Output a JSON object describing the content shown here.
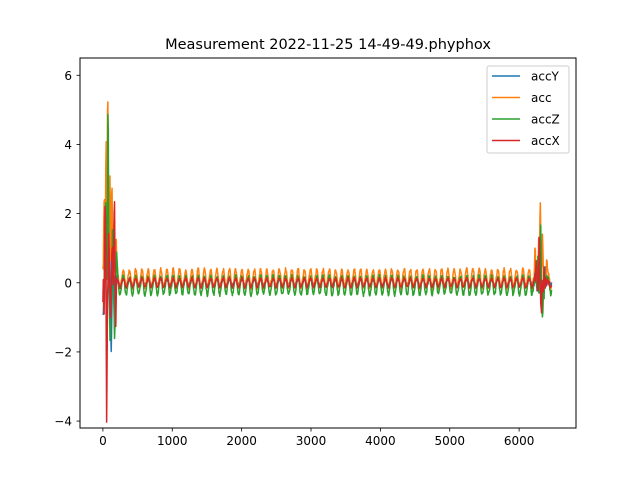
{
  "chart_data": {
    "type": "line",
    "title": "Measurement 2022-11-25 14-49-49.phyphox",
    "xlabel": "",
    "ylabel": "",
    "xlim": [
      -330,
      6820
    ],
    "ylim": [
      -4.2,
      6.5
    ],
    "x_ticks": [
      0,
      1000,
      2000,
      3000,
      4000,
      5000,
      6000
    ],
    "y_ticks": [
      -4,
      -2,
      0,
      2,
      4,
      6
    ],
    "grid": false,
    "legend_position": "upper-right",
    "series": [
      {
        "name": "accY",
        "color": "#1f77b4",
        "base": 0.02,
        "osc_amp": 0.08,
        "osc_period": 90,
        "noise": 0.03,
        "x_range": [
          0,
          6470
        ],
        "spikes": [
          [
            5,
            -0.8
          ],
          [
            30,
            0.9
          ],
          [
            60,
            -1.5
          ],
          [
            95,
            1.0
          ],
          [
            120,
            -2.3
          ],
          [
            145,
            0.6
          ],
          [
            170,
            -1.2
          ],
          [
            6260,
            -0.5
          ],
          [
            6300,
            1.0
          ],
          [
            6330,
            -0.9
          ],
          [
            6380,
            0.3
          ]
        ]
      },
      {
        "name": "acc",
        "color": "#ff7f0e",
        "base": 0.12,
        "osc_amp": 0.3,
        "osc_period": 90,
        "noise": 0.05,
        "x_range": [
          0,
          6470
        ],
        "spikes": [
          [
            20,
            2.4
          ],
          [
            45,
            4.1
          ],
          [
            70,
            6.0
          ],
          [
            100,
            2.7
          ],
          [
            130,
            2.9
          ],
          [
            160,
            1.9
          ],
          [
            190,
            1.0
          ],
          [
            6230,
            0.6
          ],
          [
            6280,
            1.3
          ],
          [
            6305,
            2.07
          ],
          [
            6340,
            1.1
          ],
          [
            6400,
            0.4
          ]
        ]
      },
      {
        "name": "accZ",
        "color": "#2ca02c",
        "base": -0.08,
        "osc_amp": 0.3,
        "osc_period": 90,
        "noise": 0.05,
        "x_range": [
          0,
          6470
        ],
        "spikes": [
          [
            10,
            -0.6
          ],
          [
            40,
            2.5
          ],
          [
            75,
            5.65
          ],
          [
            105,
            -1.9
          ],
          [
            140,
            1.6
          ],
          [
            170,
            -1.3
          ],
          [
            200,
            0.6
          ],
          [
            6270,
            0.8
          ],
          [
            6310,
            1.4
          ],
          [
            6335,
            -1.35
          ],
          [
            6370,
            0.5
          ]
        ]
      },
      {
        "name": "accX",
        "color": "#d62728",
        "base": 0.0,
        "osc_amp": 0.14,
        "osc_period": 90,
        "noise": 0.03,
        "x_range": [
          0,
          6470
        ],
        "spikes": [
          [
            15,
            -1.1
          ],
          [
            35,
            2.3
          ],
          [
            55,
            -3.65
          ],
          [
            85,
            1.7
          ],
          [
            110,
            -1.4
          ],
          [
            135,
            1.1
          ],
          [
            165,
            2.65
          ],
          [
            185,
            -1.3
          ],
          [
            6250,
            0.5
          ],
          [
            6290,
            1.2
          ],
          [
            6320,
            -1.0
          ],
          [
            6360,
            0.4
          ]
        ]
      }
    ]
  }
}
